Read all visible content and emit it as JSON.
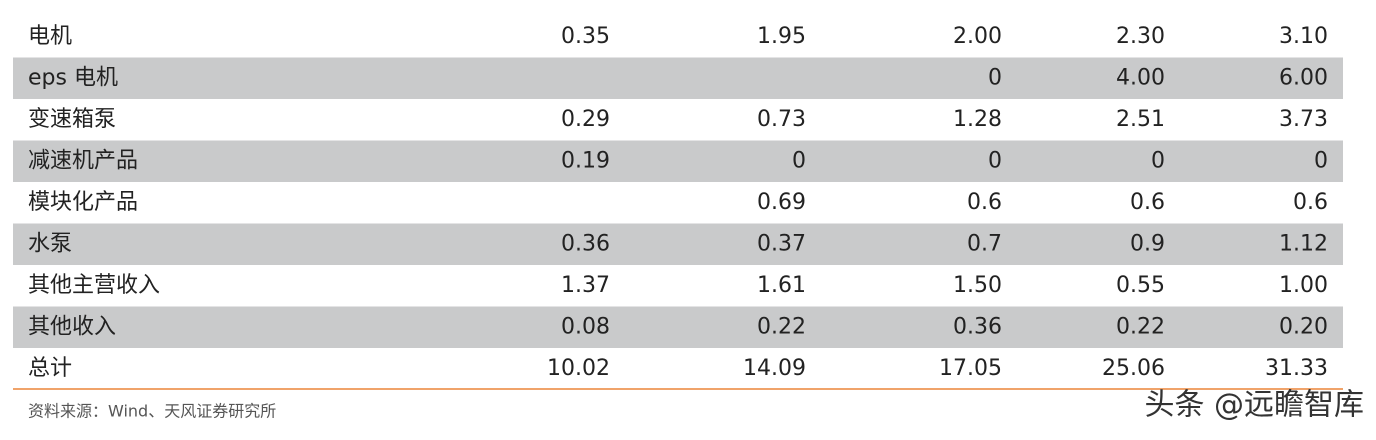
{
  "table": {
    "rows": [
      [
        "电机",
        "0.35",
        "1.95",
        "2.00",
        "2.30",
        "3.10"
      ],
      [
        "eps 电机",
        null,
        null,
        "0",
        "4.00",
        "6.00"
      ],
      [
        "变速箱泵",
        "0.29",
        "0.73",
        "1.28",
        "2.51",
        "3.73"
      ],
      [
        "减速机产品",
        "0.19",
        "0",
        "0",
        "0",
        "0"
      ],
      [
        "模块化产品",
        null,
        "0.69",
        "0.6",
        "0.6",
        "0.6"
      ],
      [
        "水泵",
        "0.36",
        "0.37",
        "0.7",
        "0.9",
        "1.12"
      ],
      [
        "其他主营收入",
        "1.37",
        "1.61",
        "1.50",
        "0.55",
        "1.00"
      ],
      [
        "其他收入",
        "0.08",
        "0.22",
        "0.36",
        "0.22",
        "0.20"
      ],
      [
        "总计",
        "10.02",
        "14.09",
        "17.05",
        "25.06",
        "31.33"
      ]
    ]
  },
  "source": "资料来源：Wind、天风证券研究所",
  "watermark": "头条 @远瞻智库"
}
